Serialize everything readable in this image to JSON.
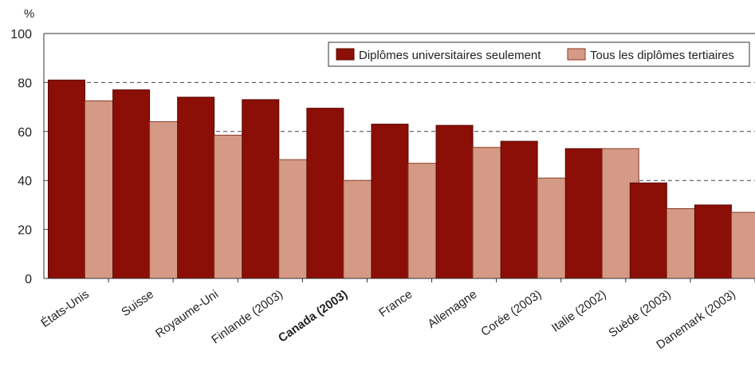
{
  "chart_data": {
    "type": "bar",
    "title": "",
    "xlabel": "",
    "ylabel": "%",
    "ylim": [
      0,
      100
    ],
    "yticks": [
      0,
      20,
      40,
      60,
      80,
      100
    ],
    "grid": "dashed horizontal",
    "legend_position": "top-right",
    "categories": [
      "États-Unis",
      "Suisse",
      "Royaume-Uni",
      "Finlande (2003)",
      "Canada (2003)",
      "France",
      "Allemagne",
      "Corée (2003)",
      "Italie (2002)",
      "Suède (2003)",
      "Danemark (2003)"
    ],
    "highlighted_category": "Canada (2003)",
    "series": [
      {
        "name": "Diplômes universitaires seulement",
        "color": "#8b0f06",
        "values": [
          81,
          77,
          74,
          73,
          69.5,
          63,
          62.5,
          56,
          53,
          39,
          30
        ]
      },
      {
        "name": "Tous les diplômes tertiaires",
        "color": "#d59a86",
        "values": [
          72.5,
          64,
          58.5,
          48.5,
          40,
          47,
          53.5,
          41,
          53,
          28.5,
          27
        ]
      }
    ]
  }
}
